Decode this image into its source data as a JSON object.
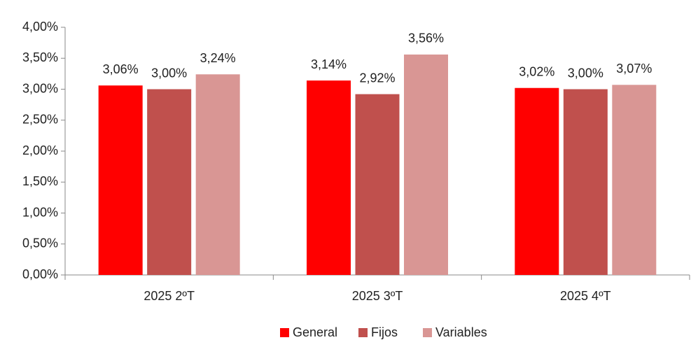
{
  "chart_data": {
    "type": "bar",
    "categories": [
      "2025 2ºT",
      "2025 3ºT",
      "2025 4ºT"
    ],
    "series": [
      {
        "name": "General",
        "color": "#ff0000",
        "values": [
          3.06,
          3.14,
          3.02
        ],
        "value_labels": [
          "3,06%",
          "3,14%",
          "3,02%"
        ]
      },
      {
        "name": "Fijos",
        "color": "#c0504d",
        "values": [
          3.0,
          2.92,
          3.0
        ],
        "value_labels": [
          "3,00%",
          "2,92%",
          "3,00%"
        ]
      },
      {
        "name": "Variables",
        "color": "#d99694",
        "values": [
          3.24,
          3.56,
          3.07
        ],
        "value_labels": [
          "3,24%",
          "3,56%",
          "3,07%"
        ]
      }
    ],
    "ylim": [
      0,
      4
    ],
    "yticks": [
      {
        "value": 0,
        "label": "0,00%"
      },
      {
        "value": 0.5,
        "label": "0,50%"
      },
      {
        "value": 1,
        "label": "1,00%"
      },
      {
        "value": 1.5,
        "label": "1,50%"
      },
      {
        "value": 2,
        "label": "2,00%"
      },
      {
        "value": 2.5,
        "label": "2,50%"
      },
      {
        "value": 3,
        "label": "3,00%"
      },
      {
        "value": 3.5,
        "label": "3,50%"
      },
      {
        "value": 4,
        "label": "4,00%"
      }
    ],
    "grid": false,
    "legend": "bottom"
  }
}
